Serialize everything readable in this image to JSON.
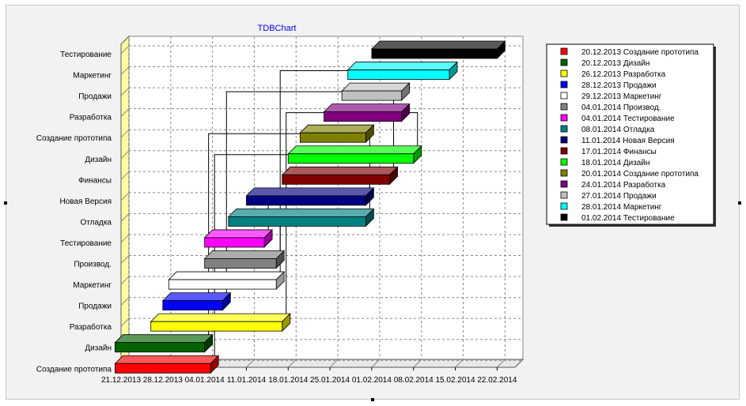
{
  "chart_data": {
    "type": "gantt",
    "title": "TDBChart",
    "x_ticks": [
      "21.12.2013",
      "28.12.2013",
      "04.01.2014",
      "11.01.2014",
      "18.01.2014",
      "25.01.2014",
      "01.02.2014",
      "08.02.2014",
      "15.02.2014",
      "22.02.2014"
    ],
    "xlim": [
      "21.12.2013",
      "25.02.2014"
    ],
    "categories": [
      "Создание прототипа",
      "Дизайн",
      "Разработка",
      "Продажи",
      "Маркетинг",
      "Производ.",
      "Тестирование",
      "Отладка",
      "Новая Версия",
      "Финансы",
      "Дизайн",
      "Создание прототипа",
      "Разработка",
      "Продажи",
      "Маркетинг",
      "Тестирование"
    ],
    "tasks": [
      {
        "label": "Создание прототипа",
        "start": "20.12.2013",
        "end": "05.01.2014",
        "color": "#ff0000"
      },
      {
        "label": "Дизайн",
        "start": "20.12.2013",
        "end": "04.01.2014",
        "color": "#006400"
      },
      {
        "label": "Разработка",
        "start": "26.12.2013",
        "end": "17.01.2014",
        "color": "#ffff00"
      },
      {
        "label": "Продажи",
        "start": "28.12.2013",
        "end": "07.01.2014",
        "color": "#0000ff"
      },
      {
        "label": "Маркетинг",
        "start": "29.12.2013",
        "end": "16.01.2014",
        "color": "#ffffff"
      },
      {
        "label": "Производ.",
        "start": "04.01.2014",
        "end": "16.01.2014",
        "color": "#808080"
      },
      {
        "label": "Тестирование",
        "start": "04.01.2014",
        "end": "14.01.2014",
        "color": "#ff00ff"
      },
      {
        "label": "Отладка",
        "start": "08.01.2014",
        "end": "31.01.2014",
        "color": "#008080"
      },
      {
        "label": "Новая Версия",
        "start": "11.01.2014",
        "end": "31.01.2014",
        "color": "#000080"
      },
      {
        "label": "Финансы",
        "start": "17.01.2014",
        "end": "04.02.2014",
        "color": "#800000"
      },
      {
        "label": "Дизайн",
        "start": "18.01.2014",
        "end": "08.02.2014",
        "color": "#00ff00"
      },
      {
        "label": "Создание прототипа",
        "start": "20.01.2014",
        "end": "31.01.2014",
        "color": "#808000"
      },
      {
        "label": "Разработка",
        "start": "24.01.2014",
        "end": "06.02.2014",
        "color": "#800080"
      },
      {
        "label": "Продажи",
        "start": "27.01.2014",
        "end": "06.02.2014",
        "color": "#c0c0c0"
      },
      {
        "label": "Маркетинг",
        "start": "28.01.2014",
        "end": "14.02.2014",
        "color": "#00ffff"
      },
      {
        "label": "Тестирование",
        "start": "01.02.2014",
        "end": "22.02.2014",
        "color": "#000000"
      }
    ],
    "legend": [
      {
        "label": "20.12.2013 Создание прототипа",
        "color": "#ff0000"
      },
      {
        "label": "20.12.2013 Дизайн",
        "color": "#006400"
      },
      {
        "label": "26.12.2013 Разработка",
        "color": "#ffff00"
      },
      {
        "label": "28.12.2013 Продажи",
        "color": "#0000ff"
      },
      {
        "label": "29.12.2013 Маркетинг",
        "color": "#ffffff"
      },
      {
        "label": "04.01.2014 Производ.",
        "color": "#808080"
      },
      {
        "label": "04.01.2014 Тестирование",
        "color": "#ff00ff"
      },
      {
        "label": "08.01.2014 Отладка",
        "color": "#008080"
      },
      {
        "label": "11.01.2014 Новая Версия",
        "color": "#000080"
      },
      {
        "label": "17.01.2014 Финансы",
        "color": "#800000"
      },
      {
        "label": "18.01.2014 Дизайн",
        "color": "#00ff00"
      },
      {
        "label": "20.01.2014 Создание прототипа",
        "color": "#808000"
      },
      {
        "label": "24.01.2014 Разработка",
        "color": "#800080"
      },
      {
        "label": "27.01.2014 Продажи",
        "color": "#c0c0c0"
      },
      {
        "label": "28.01.2014 Маркетинг",
        "color": "#00ffff"
      },
      {
        "label": "01.02.2014 Тестирование",
        "color": "#000000"
      }
    ],
    "links": [
      [
        1,
        11
      ],
      [
        2,
        12
      ],
      [
        3,
        13
      ],
      [
        4,
        14
      ],
      [
        5,
        8
      ],
      [
        6,
        15
      ],
      [
        7,
        9
      ],
      [
        8,
        10
      ],
      [
        9,
        12
      ],
      [
        10,
        14
      ],
      [
        11,
        13
      ]
    ],
    "legend_position": "right",
    "grid": true,
    "colors": {
      "background": "#f2f2f2",
      "wall_side": "#ffffa0",
      "grid": "#888888",
      "title": "#0000ff"
    }
  }
}
